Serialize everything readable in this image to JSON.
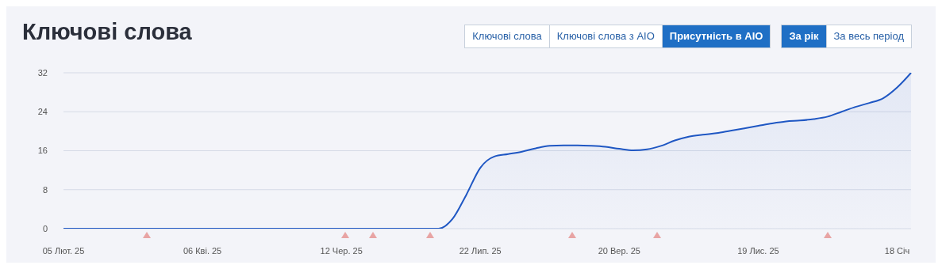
{
  "chart_data": {
    "type": "area",
    "title": "Ключові слова",
    "annotations": [
      "Ключові слова",
      "Ключові слова з AIO",
      "Присутність в AIO",
      "За рік",
      "За весь період"
    ],
    "categories": [
      "05 Лют. 25",
      null,
      null,
      null,
      null,
      null,
      null,
      null,
      null,
      null,
      "06 Кві. 25",
      null,
      null,
      null,
      null,
      null,
      null,
      null,
      null,
      null,
      "12 Чер. 25",
      null,
      null,
      null,
      null,
      null,
      null,
      null,
      null,
      null,
      "22 Лип. 25",
      null,
      null,
      null,
      null,
      null,
      null,
      null,
      null,
      null,
      "20 Вер. 25",
      null,
      null,
      null,
      null,
      null,
      null,
      null,
      null,
      null,
      "19 Лис. 25",
      null,
      null,
      null,
      null,
      null,
      null,
      null,
      null,
      null,
      "18 Січ",
      null
    ],
    "series": [
      {
        "color": "#1f57c3",
        "values": [
          0,
          0,
          0,
          0,
          0,
          0,
          0,
          0,
          0,
          0,
          0,
          0,
          0,
          0,
          0,
          0,
          0,
          0,
          0,
          0,
          0,
          0,
          0,
          0,
          0,
          0,
          0,
          0,
          2,
          7,
          12.5,
          14.8,
          15.3,
          15.8,
          16.5,
          17,
          17.1,
          17.1,
          17,
          16.8,
          16.4,
          16.1,
          16.3,
          17,
          18.1,
          18.9,
          19.3,
          19.6,
          20.1,
          20.6,
          21.1,
          21.6,
          22,
          22.2,
          22.5,
          23,
          24,
          25,
          25.8,
          26.8,
          29,
          32
        ]
      }
    ],
    "ylim": [
      0,
      32
    ],
    "yticks": [
      0,
      8,
      16,
      24,
      32
    ],
    "grid": "y"
  }
}
